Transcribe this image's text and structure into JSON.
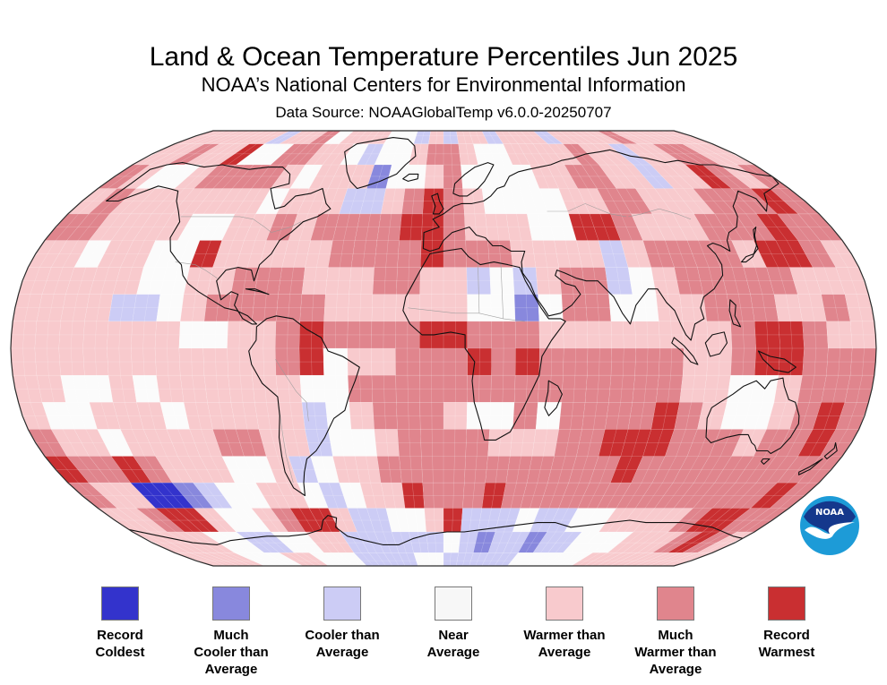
{
  "header": {
    "title": "Land & Ocean Temperature Percentiles Jun 2025",
    "subtitle": "NOAA’s National Centers for Environmental Information",
    "source": "Data Source: NOAAGlobalTemp v6.0.0-20250707"
  },
  "logo": {
    "text": "NOAA"
  },
  "legend": {
    "items": [
      {
        "label_lines": [
          "Record",
          "Coldest"
        ],
        "color": "#3333cc"
      },
      {
        "label_lines": [
          "Much",
          "Cooler than",
          "Average"
        ],
        "color": "#8888dd"
      },
      {
        "label_lines": [
          "Cooler than",
          "Average"
        ],
        "color": "#ccccf5"
      },
      {
        "label_lines": [
          "Near",
          "Average"
        ],
        "color": "#f7f7f7"
      },
      {
        "label_lines": [
          "Warmer than",
          "Average"
        ],
        "color": "#f8cacd"
      },
      {
        "label_lines": [
          "Much",
          "Warmer than",
          "Average"
        ],
        "color": "#e0858d"
      },
      {
        "label_lines": [
          "Record",
          "Warmest"
        ],
        "color": "#c92f31"
      }
    ]
  },
  "chart_data": {
    "type": "heatmap",
    "projection": "robinson",
    "title": "Land & Ocean Temperature Percentiles Jun 2025",
    "period": "Jun 2025",
    "dataset": "NOAAGlobalTemp v6.0.0-20250707",
    "categories": [
      "Record Coldest",
      "Much Cooler than Average",
      "Cooler than Average",
      "Near Average",
      "Warmer than Average",
      "Much Warmer than Average",
      "Record Warmest"
    ],
    "palette": [
      "#3333cc",
      "#8888dd",
      "#ccccf5",
      "#fbfbfb",
      "#f8cacd",
      "#e0858d",
      "#c92f31"
    ],
    "grid": {
      "cell_degrees": 10,
      "lat_order": "90N to 90S",
      "lon_order": "180W to 180E",
      "note": "digits index categories 0-6, estimated per 10-degree cell",
      "rows": [
        "444444 244534 443324 244244 424444 544444",
        "445446 335544 323345 543344 445442 445544",
        "543345 555434 441334 533334 455442 446545",
        "454444 444344 422456 543333 445544 455565",
        "554444 334454 555566 544433 665444 555655",
        "443443 364444 455556 555444 424555 546654",
        "444443 344555 444554 423245 523455 555444",
        "444422 345555 544444 433135 533445 554454",
        "444444 433445 655556 655544 444444 566544",
        "444444 444445 634455 565655 555544 566555",
        "443343 444444 335555 555555 555544 334555",
        "433444 344444 234555 433535 555654 334565",
        "544344 445544 233455 554445 566655 545565",
        "655654 443342 344555 555555 556555 555555",
        "544001 233443 234465 556555 555555 555565",
        "445664 334566 422334 622232 233444 456655",
        "444433 223344 222222 321221 223334 445654",
        "444433 344333 222233 222223 333344 444444"
      ]
    }
  }
}
